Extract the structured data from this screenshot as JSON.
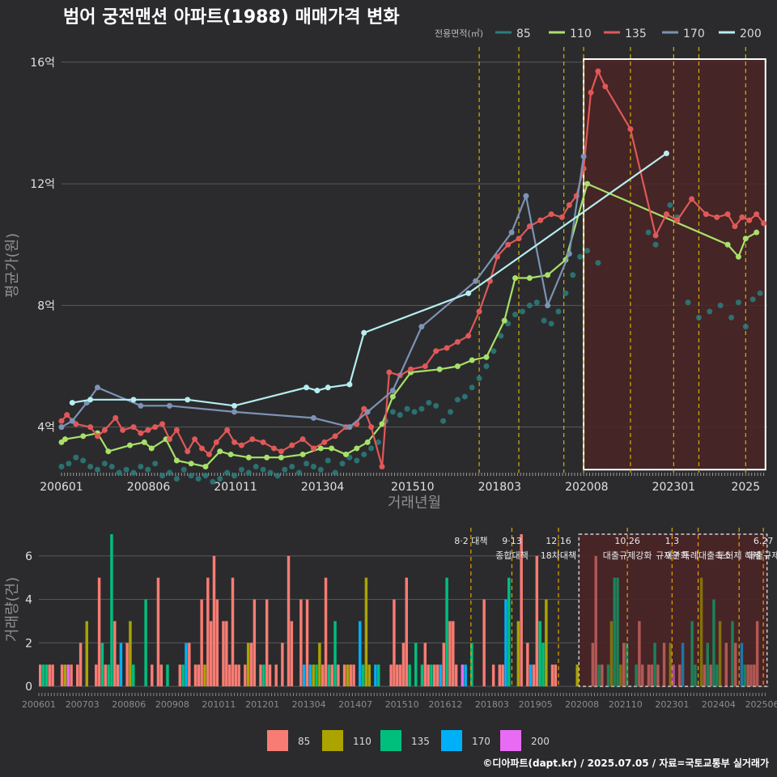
{
  "chart_data": [
    {
      "type": "line",
      "title": "범어 궁전맨션 아파트(1988) 매매가격 변화",
      "ylabel": "평균가(원)",
      "xlabel": "거래년월",
      "ylim": [
        2.5,
        16.5
      ],
      "xlim": [
        2006.0,
        2025.6
      ],
      "grid": true,
      "legend": {
        "title": "전용면적(㎡)",
        "placement": "top-right",
        "entries": [
          "85",
          "110",
          "135",
          "170",
          "200"
        ]
      },
      "y_ticks": [
        {
          "value": 4,
          "label": "4억"
        },
        {
          "value": 8,
          "label": "8억"
        },
        {
          "value": 12,
          "label": "12억"
        },
        {
          "value": 16,
          "label": "16억"
        }
      ],
      "x_ticks": [
        {
          "value": 2006.0,
          "label": "200601"
        },
        {
          "value": 2008.4167,
          "label": "200806"
        },
        {
          "value": 2010.8333,
          "label": "201011"
        },
        {
          "value": 2013.25,
          "label": "201304"
        },
        {
          "value": 2015.75,
          "label": "201510"
        },
        {
          "value": 2018.1667,
          "label": "201803"
        },
        {
          "value": 2020.5833,
          "label": "202008"
        },
        {
          "value": 2023.0,
          "label": "202301"
        },
        {
          "value": 2025.0,
          "label": "2025"
        }
      ],
      "policy_lines": [
        2017.6,
        2018.7,
        2019.95,
        2020.5,
        2021.8,
        2023.0,
        2023.7,
        2025.0
      ],
      "highlight_range": [
        2020.5,
        2025.55
      ],
      "series": [
        {
          "name": "85",
          "color": "#2c7e7e",
          "style": "scatter",
          "x": [
            2006.0,
            2006.2,
            2006.4,
            2006.6,
            2006.8,
            2007.0,
            2007.2,
            2007.4,
            2007.6,
            2007.8,
            2008.0,
            2008.2,
            2008.4,
            2008.6,
            2008.8,
            2009.0,
            2009.2,
            2009.4,
            2009.6,
            2009.8,
            2010.0,
            2010.2,
            2010.4,
            2010.6,
            2010.8,
            2011.0,
            2011.2,
            2011.4,
            2011.6,
            2011.8,
            2012.0,
            2012.2,
            2012.4,
            2012.6,
            2012.8,
            2013.0,
            2013.2,
            2013.4,
            2013.6,
            2013.8,
            2014.0,
            2014.2,
            2014.4,
            2014.6,
            2014.8,
            2015.0,
            2015.2,
            2015.4,
            2015.6,
            2015.8,
            2016.0,
            2016.2,
            2016.4,
            2016.6,
            2016.8,
            2017.0,
            2017.2,
            2017.4,
            2017.6,
            2017.8,
            2018.0,
            2018.2,
            2018.4,
            2018.6,
            2018.8,
            2019.0,
            2019.2,
            2019.4,
            2019.6,
            2019.8,
            2020.0,
            2020.2,
            2020.4,
            2020.6,
            2020.9,
            2022.3,
            2022.5,
            2022.9,
            2023.1,
            2023.4,
            2023.7,
            2024.0,
            2024.3,
            2024.6,
            2024.8,
            2025.0,
            2025.2,
            2025.4
          ],
          "values": [
            2.7,
            2.8,
            3.0,
            2.9,
            2.7,
            2.6,
            2.8,
            2.7,
            2.5,
            2.6,
            2.5,
            2.7,
            2.6,
            2.8,
            2.4,
            2.5,
            2.3,
            2.6,
            2.4,
            2.3,
            2.4,
            2.2,
            2.3,
            2.5,
            2.4,
            2.6,
            2.5,
            2.7,
            2.6,
            2.5,
            2.4,
            2.6,
            2.7,
            2.5,
            2.8,
            2.7,
            2.6,
            2.9,
            2.5,
            2.8,
            3.0,
            2.9,
            3.1,
            3.3,
            3.5,
            4.2,
            4.5,
            4.4,
            4.6,
            4.5,
            4.6,
            4.8,
            4.7,
            4.2,
            4.5,
            4.9,
            5.0,
            5.3,
            5.6,
            6.0,
            6.5,
            7.0,
            7.4,
            7.7,
            7.8,
            8.0,
            8.1,
            7.5,
            7.4,
            7.8,
            8.4,
            9.0,
            9.6,
            9.8,
            9.4,
            10.4,
            10.0,
            11.3,
            10.9,
            8.1,
            7.6,
            7.8,
            8.0,
            7.6,
            8.1,
            7.3,
            8.2,
            8.4
          ]
        },
        {
          "name": "110",
          "color": "#a8e06a",
          "style": "line",
          "x": [
            2006.0,
            2006.1,
            2006.6,
            2007.0,
            2007.3,
            2007.9,
            2008.3,
            2008.5,
            2008.9,
            2009.2,
            2009.6,
            2010.0,
            2010.4,
            2010.7,
            2011.2,
            2011.7,
            2012.1,
            2012.7,
            2013.2,
            2013.5,
            2013.9,
            2014.2,
            2014.5,
            2014.9,
            2015.2,
            2015.7,
            2016.5,
            2017.0,
            2017.4,
            2017.8,
            2018.3,
            2018.6,
            2019.0,
            2019.5,
            2020.0,
            2020.6,
            2024.5,
            2024.8,
            2025.0,
            2025.3
          ],
          "values": [
            3.5,
            3.6,
            3.7,
            3.8,
            3.2,
            3.4,
            3.5,
            3.3,
            3.6,
            2.9,
            2.8,
            2.7,
            3.2,
            3.1,
            3.0,
            3.0,
            3.0,
            3.1,
            3.3,
            3.3,
            3.1,
            3.3,
            3.5,
            4.1,
            5.0,
            5.8,
            5.9,
            6.0,
            6.2,
            6.3,
            7.5,
            8.9,
            8.9,
            9.0,
            9.5,
            12.0,
            10.0,
            9.6,
            10.2,
            10.4
          ]
        },
        {
          "name": "135",
          "color": "#e05858",
          "style": "line",
          "x": [
            2006.0,
            2006.15,
            2006.4,
            2006.8,
            2007.0,
            2007.2,
            2007.5,
            2007.7,
            2008.0,
            2008.2,
            2008.4,
            2008.6,
            2008.8,
            2009.0,
            2009.2,
            2009.5,
            2009.7,
            2009.9,
            2010.1,
            2010.3,
            2010.6,
            2010.8,
            2011.0,
            2011.3,
            2011.6,
            2011.9,
            2012.1,
            2012.4,
            2012.7,
            2013.0,
            2013.3,
            2013.6,
            2013.9,
            2014.2,
            2014.4,
            2014.6,
            2014.9,
            2015.1,
            2015.4,
            2015.7,
            2016.1,
            2016.4,
            2016.7,
            2017.0,
            2017.3,
            2017.6,
            2017.9,
            2018.1,
            2018.4,
            2018.7,
            2019.0,
            2019.3,
            2019.6,
            2019.9,
            2020.1,
            2020.3,
            2020.5,
            2020.7,
            2020.9,
            2021.1,
            2021.8,
            2022.5,
            2022.8,
            2023.1,
            2023.5,
            2023.9,
            2024.2,
            2024.5,
            2024.7,
            2024.9,
            2025.1,
            2025.3,
            2025.5
          ],
          "values": [
            4.2,
            4.4,
            4.1,
            4.0,
            3.7,
            3.9,
            4.3,
            3.9,
            4.0,
            3.8,
            3.9,
            4.0,
            4.1,
            3.6,
            3.9,
            3.2,
            3.6,
            3.3,
            3.1,
            3.5,
            3.9,
            3.5,
            3.4,
            3.6,
            3.5,
            3.3,
            3.2,
            3.4,
            3.6,
            3.3,
            3.5,
            3.7,
            4.0,
            4.1,
            4.6,
            4.0,
            2.7,
            5.8,
            5.7,
            5.9,
            6.0,
            6.5,
            6.6,
            6.8,
            7.0,
            7.8,
            8.8,
            9.6,
            10.0,
            10.2,
            10.6,
            10.8,
            11.0,
            10.9,
            11.3,
            11.6,
            12.5,
            15.0,
            15.7,
            15.2,
            13.8,
            10.3,
            11.0,
            10.8,
            11.5,
            11.0,
            10.9,
            11.0,
            10.6,
            10.9,
            10.8,
            11.0,
            10.7
          ]
        },
        {
          "name": "170",
          "color": "#7d92b5",
          "style": "line",
          "x": [
            2006.0,
            2006.3,
            2006.7,
            2007.0,
            2008.2,
            2009.0,
            2010.8,
            2013.0,
            2014.0,
            2014.5,
            2015.2,
            2016.0,
            2017.5,
            2018.5,
            2018.9,
            2019.5,
            2020.1,
            2020.5
          ],
          "values": [
            4.0,
            4.2,
            4.8,
            5.3,
            4.7,
            4.7,
            4.5,
            4.3,
            4.0,
            4.5,
            5.2,
            7.3,
            8.8,
            10.4,
            11.6,
            8.0,
            9.7,
            12.9
          ]
        },
        {
          "name": "200",
          "color": "#b6eef0",
          "style": "line",
          "x": [
            2006.3,
            2006.8,
            2008.0,
            2009.5,
            2010.8,
            2012.8,
            2013.1,
            2013.4,
            2014.0,
            2014.4,
            2017.3,
            2022.8
          ],
          "values": [
            4.8,
            4.9,
            4.9,
            4.9,
            4.7,
            5.3,
            5.2,
            5.3,
            5.4,
            7.1,
            8.4,
            13.0
          ]
        }
      ]
    },
    {
      "type": "bar",
      "ylabel": "거래량(건)",
      "ylim": [
        0,
        7
      ],
      "y_ticks": [
        0,
        2,
        4,
        6
      ],
      "x_ticks": [
        "200601",
        "200703",
        "200806",
        "200908",
        "201011",
        "201201",
        "201304",
        "201407",
        "201510",
        "201612",
        "201803",
        "201905",
        "202008",
        "202110",
        "202301",
        "202404",
        "202506"
      ],
      "legend": {
        "placement": "bottom",
        "entries": [
          {
            "name": "85",
            "color": "#f87c73"
          },
          {
            "name": "110",
            "color": "#aba400"
          },
          {
            "name": "135",
            "color": "#00bf7d"
          },
          {
            "name": "170",
            "color": "#00b0f6"
          },
          {
            "name": "200",
            "color": "#e76bf3"
          }
        ]
      },
      "annotations": [
        {
          "x": 2017.6,
          "line1": "8·2 대책",
          "line2": ""
        },
        {
          "x": 2018.7,
          "line1": "9·13",
          "line2": "종합대책"
        },
        {
          "x": 2019.95,
          "line1": "12·16",
          "line2": "18차대책"
        },
        {
          "x": 2021.8,
          "line1": "10.26",
          "line2": "대출규제강화"
        },
        {
          "x": 2023.0,
          "line1": "1.3",
          "line2": "규제완화"
        },
        {
          "x": 2023.7,
          "line1": "",
          "line2": "9·7 특례대출축소"
        },
        {
          "x": 2024.8,
          "line1": "",
          "line2": "토허제 해제"
        },
        {
          "x": 2025.45,
          "line1": "6.27",
          "line2": "대출규제"
        }
      ],
      "highlight_range": [
        2020.5,
        2025.55
      ]
    }
  ],
  "caption": "©디아파트(dapt.kr) / 2025.07.05 / 자료=국토교통부 실거래가",
  "colors": {
    "background": "#2b2b2d",
    "highlight_fill": "#4a2426",
    "policy_line": "#d4b000"
  }
}
